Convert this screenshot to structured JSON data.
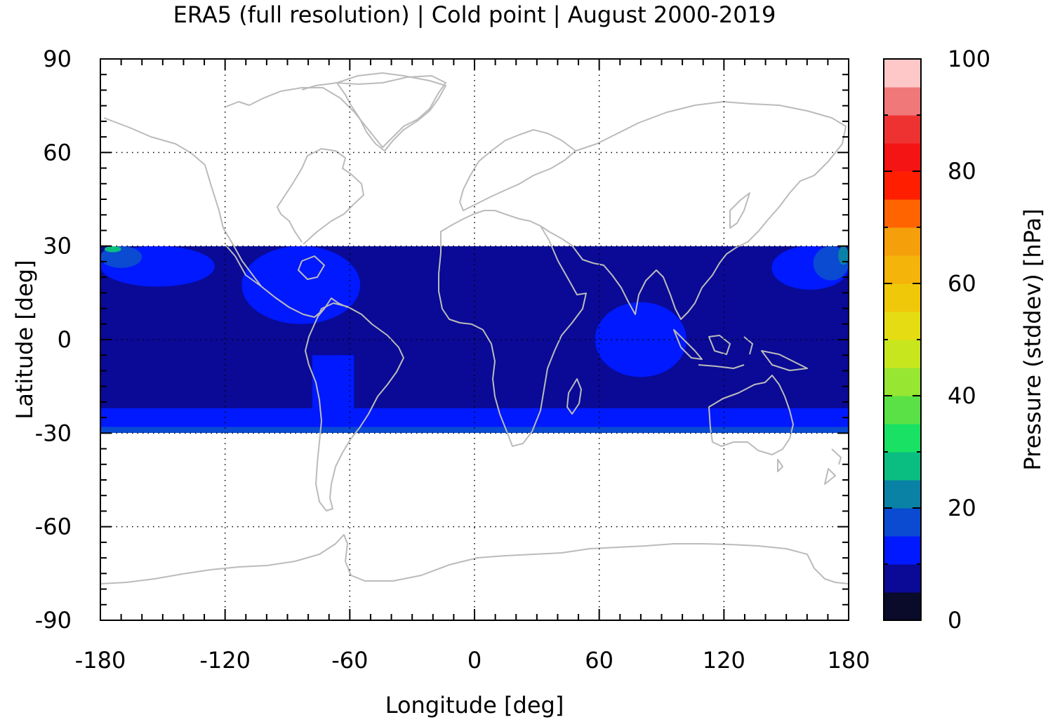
{
  "chart_data": {
    "type": "heatmap",
    "title": "ERA5 (full resolution) | Cold point | August 2000-2019",
    "xlabel": "Longitude [deg]",
    "ylabel": "Latitude [deg]",
    "xlim": [
      -180,
      180
    ],
    "ylim": [
      -90,
      90
    ],
    "xticks": [
      "-180",
      "-120",
      "-60",
      "0",
      "60",
      "120",
      "180"
    ],
    "yticks": [
      "90",
      "60",
      "30",
      "0",
      "-30",
      "-60",
      "-90"
    ],
    "grid": true,
    "data_lat_range": [
      -30,
      30
    ],
    "colorbar": {
      "label": "Pressure (stddev) [hPa]",
      "range": [
        0,
        100
      ],
      "ticks": [
        "0",
        "20",
        "40",
        "60",
        "80",
        "100"
      ],
      "levels": [
        {
          "min": 0,
          "max": 5,
          "color": "#0a0a2a"
        },
        {
          "min": 5,
          "max": 10,
          "color": "#0a0a96"
        },
        {
          "min": 10,
          "max": 15,
          "color": "#0019ff"
        },
        {
          "min": 15,
          "max": 20,
          "color": "#0a4bd2"
        },
        {
          "min": 20,
          "max": 25,
          "color": "#0a82a5"
        },
        {
          "min": 25,
          "max": 30,
          "color": "#0abe82"
        },
        {
          "min": 30,
          "max": 35,
          "color": "#19e164"
        },
        {
          "min": 35,
          "max": 40,
          "color": "#5ae146"
        },
        {
          "min": 40,
          "max": 45,
          "color": "#96e632"
        },
        {
          "min": 45,
          "max": 50,
          "color": "#c8e61e"
        },
        {
          "min": 50,
          "max": 55,
          "color": "#e6dc14"
        },
        {
          "min": 55,
          "max": 60,
          "color": "#f0c80a"
        },
        {
          "min": 60,
          "max": 65,
          "color": "#f5b40a"
        },
        {
          "min": 65,
          "max": 70,
          "color": "#f5a00a"
        },
        {
          "min": 70,
          "max": 75,
          "color": "#ff6400"
        },
        {
          "min": 75,
          "max": 80,
          "color": "#ff1e00"
        },
        {
          "min": 80,
          "max": 85,
          "color": "#f51414"
        },
        {
          "min": 85,
          "max": 90,
          "color": "#ee3232"
        },
        {
          "min": 90,
          "max": 95,
          "color": "#f07878"
        },
        {
          "min": 95,
          "max": 100,
          "color": "#ffc8c8"
        }
      ]
    },
    "regions": [
      {
        "name": "background",
        "value_range": [
          5,
          10
        ],
        "color": "#0a0a96",
        "lon": [
          -180,
          180
        ],
        "lat": [
          -30,
          30
        ]
      },
      {
        "name": "south-band",
        "value_range": [
          10,
          15
        ],
        "color": "#0019ff",
        "lon": [
          -180,
          180
        ],
        "lat": [
          -30,
          -22
        ]
      },
      {
        "name": "south-edge",
        "value_range": [
          15,
          20
        ],
        "color": "#0a4bd2",
        "lon": [
          -180,
          180
        ],
        "lat": [
          -30,
          -28
        ]
      },
      {
        "name": "central-pacific-north",
        "value_range": [
          10,
          15
        ],
        "color": "#0019ff",
        "lon": [
          -180,
          -125
        ],
        "lat": [
          17,
          30
        ]
      },
      {
        "name": "central-pacific-north-inner",
        "value_range": [
          15,
          20
        ],
        "color": "#0a4bd2",
        "lon": [
          -180,
          -160
        ],
        "lat": [
          23,
          30
        ]
      },
      {
        "name": "central-pacific-north-core",
        "value_range": [
          25,
          30
        ],
        "color": "#0abe82",
        "lon": [
          -178,
          -170
        ],
        "lat": [
          28,
          30
        ]
      },
      {
        "name": "east-pacific-caribbean",
        "value_range": [
          10,
          15
        ],
        "color": "#0019ff",
        "lon": [
          -112,
          -55
        ],
        "lat": [
          5,
          30
        ]
      },
      {
        "name": "south-america",
        "value_range": [
          10,
          15
        ],
        "color": "#0019ff",
        "lon": [
          -78,
          -58
        ],
        "lat": [
          -28,
          -5
        ]
      },
      {
        "name": "indian-ocean",
        "value_range": [
          10,
          15
        ],
        "color": "#0019ff",
        "lon": [
          58,
          102
        ],
        "lat": [
          -12,
          12
        ]
      },
      {
        "name": "west-pacific-north",
        "value_range": [
          10,
          15
        ],
        "color": "#0019ff",
        "lon": [
          143,
          180
        ],
        "lat": [
          16,
          30
        ]
      },
      {
        "name": "west-pacific-north-inner",
        "value_range": [
          15,
          20
        ],
        "color": "#0a4bd2",
        "lon": [
          163,
          180
        ],
        "lat": [
          19,
          30
        ]
      },
      {
        "name": "west-pacific-north-core",
        "value_range": [
          20,
          25
        ],
        "color": "#0a82a5",
        "lon": [
          175,
          180
        ],
        "lat": [
          24,
          30
        ]
      }
    ],
    "colors": {
      "coastline": "#bbbbbb",
      "grid": "#000000"
    }
  }
}
